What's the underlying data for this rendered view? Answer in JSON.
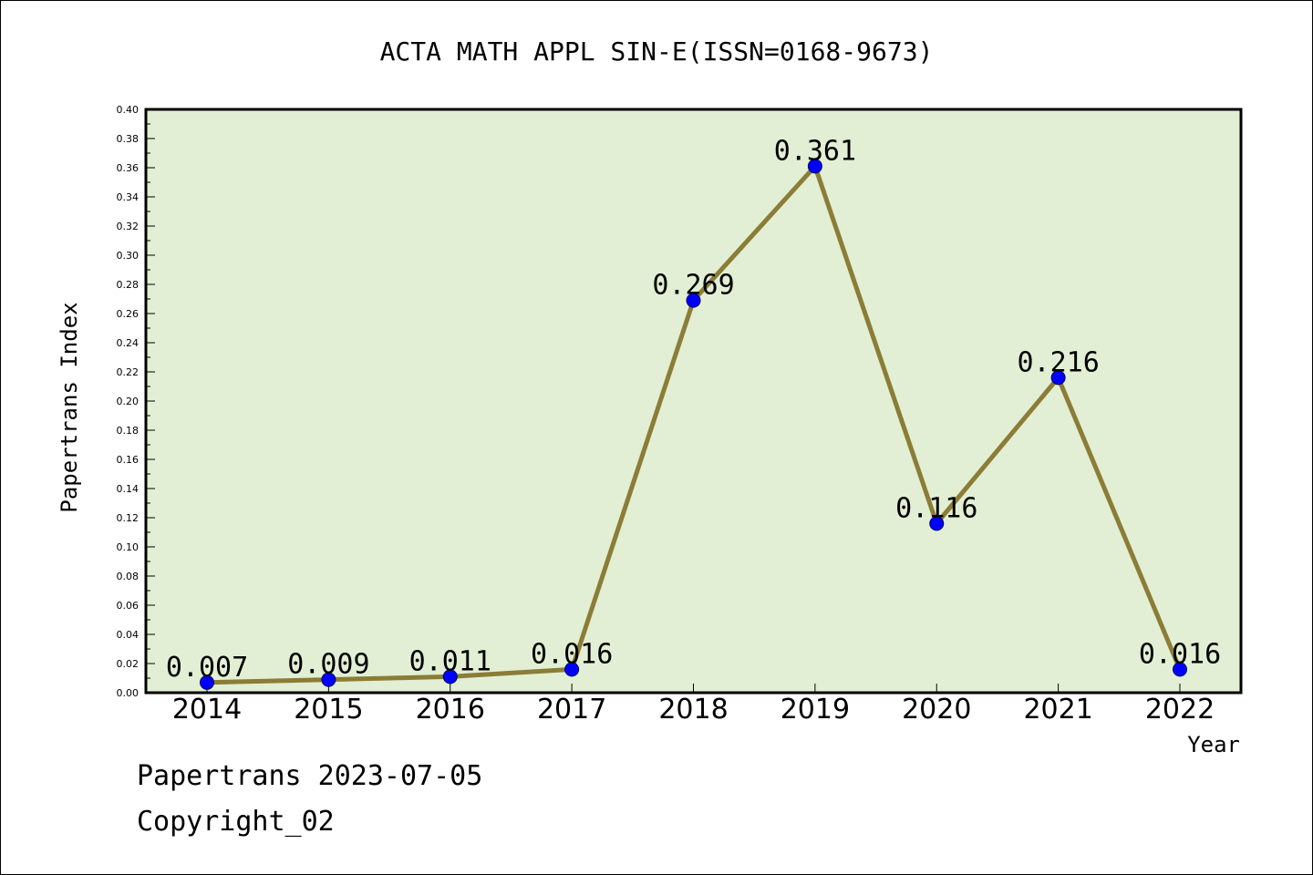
{
  "chart_data": {
    "type": "line",
    "title": "ACTA MATH APPL SIN-E(ISSN=0168-9673)",
    "xlabel": "Year",
    "ylabel": "Papertrans Index",
    "categories": [
      "2014",
      "2015",
      "2016",
      "2017",
      "2018",
      "2019",
      "2020",
      "2021",
      "2022"
    ],
    "series": [
      {
        "values": [
          0.007,
          0.009,
          0.011,
          0.016,
          0.269,
          0.361,
          0.116,
          0.216,
          0.016
        ],
        "data_labels": [
          "0.007",
          "0.009",
          "0.011",
          "0.016",
          "0.269",
          "0.361",
          "0.116",
          "0.216",
          "0.016"
        ]
      }
    ],
    "ylim": [
      0,
      0.4
    ],
    "yticks": [
      "0.00",
      "0.02",
      "0.04",
      "0.06",
      "0.08",
      "0.10",
      "0.12",
      "0.14",
      "0.16",
      "0.18",
      "0.20",
      "0.22",
      "0.24",
      "0.26",
      "0.28",
      "0.30",
      "0.32",
      "0.34",
      "0.36",
      "0.38",
      "0.40"
    ],
    "grid": false,
    "legend": "none",
    "colors": {
      "plot_background": "#e2efd4",
      "line": "#8b7d36",
      "marker": "#0000ff",
      "marker_edge": "#000060"
    }
  },
  "footer": {
    "date_line": "Papertrans 2023-07-05",
    "copyright": "Copyright_02"
  }
}
